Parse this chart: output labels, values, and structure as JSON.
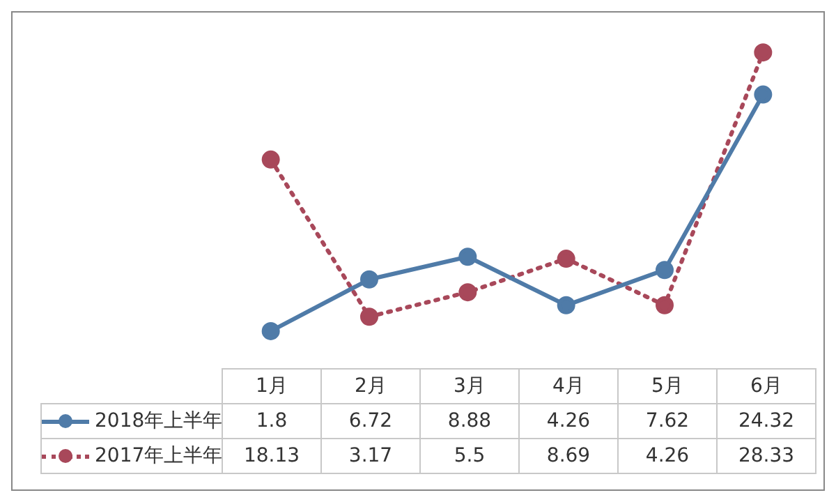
{
  "chart_data": {
    "type": "line",
    "categories": [
      "1月",
      "2月",
      "3月",
      "4月",
      "5月",
      "6月"
    ],
    "series": [
      {
        "name": "2018年上半年",
        "color": "#4f7ba8",
        "values": [
          1.8,
          6.72,
          8.88,
          4.26,
          7.62,
          24.32
        ],
        "line_style": "solid"
      },
      {
        "name": "2017年上半年",
        "color": "#a8485a",
        "values": [
          18.13,
          3.17,
          5.5,
          8.69,
          4.26,
          28.33
        ],
        "line_style": "dotted"
      }
    ],
    "marker": "circle",
    "data_labels": true,
    "legend": "bottom left"
  }
}
